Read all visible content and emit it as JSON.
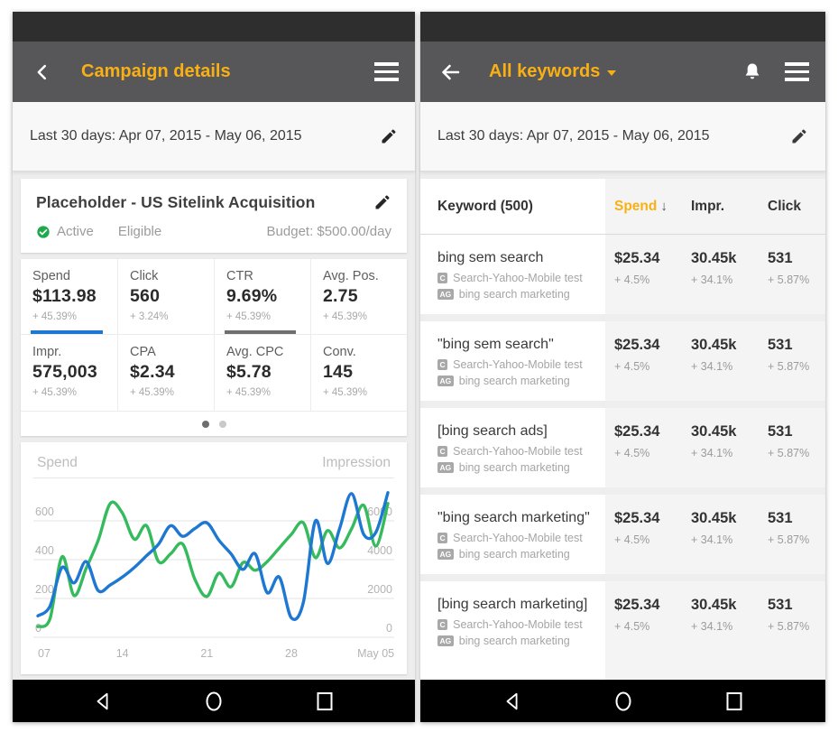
{
  "colors": {
    "accent_yellow": "#f8b015",
    "app_bar": "#57575a",
    "status_bar": "#2e2e2e",
    "green_line": "#35bb5d",
    "blue_line": "#1e78d2",
    "green_check": "#1da94c",
    "dark_underline": "#6f6f6f",
    "active_dot": "#6f6f6f",
    "inactive_dot": "#c9c9c9"
  },
  "left": {
    "app_bar": {
      "title": "Campaign details"
    },
    "date_bar": {
      "label": "Last 30 days: Apr 07, 2015 - May 06, 2015"
    },
    "campaign_card": {
      "title": "Placeholder - US Sitelink Acquisition",
      "status": "Active",
      "approval": "Eligible",
      "budget": "Budget: $500.00/day"
    },
    "stats": [
      {
        "label": "Spend",
        "value": "$113.98",
        "delta": "+ 45.39%",
        "underline": "blue"
      },
      {
        "label": "Click",
        "value": "560",
        "delta": "+ 3.24%",
        "underline": null
      },
      {
        "label": "CTR",
        "value": "9.69%",
        "delta": "+ 45.39%",
        "underline": "dark"
      },
      {
        "label": "Avg. Pos.",
        "value": "2.75",
        "delta": "+ 45.39%",
        "underline": null
      },
      {
        "label": "Impr.",
        "value": "575,003",
        "delta": "+ 45.39%",
        "underline": null
      },
      {
        "label": "CPA",
        "value": "$2.34",
        "delta": "+ 45.39%",
        "underline": null
      },
      {
        "label": "Avg. CPC",
        "value": "$5.78",
        "delta": "+ 45.39%",
        "underline": null
      },
      {
        "label": "Conv.",
        "value": "145",
        "delta": "+ 45.39%",
        "underline": null
      }
    ],
    "pager": {
      "total_dots": 2,
      "active_dot": 0
    }
  },
  "right": {
    "app_bar": {
      "title": "All keywords"
    },
    "date_bar": {
      "label": "Last 30 days: Apr 07, 2015 - May 06, 2015"
    },
    "table": {
      "header": {
        "keyword": "Keyword (500)",
        "spend": "Spend",
        "sort_icon": "↓",
        "impr": "Impr.",
        "click": "Click"
      },
      "rows": [
        {
          "keyword": "bing sem search",
          "campaign_badge": "C",
          "campaign": "Search-Yahoo-Mobile test",
          "adgroup_badge": "AG",
          "adgroup": "bing search marketing",
          "spend": "$25.34",
          "spend_delta": "+ 4.5%",
          "impr": "30.45k",
          "impr_delta": "+ 34.1%",
          "click": "531",
          "click_delta": "+ 5.87%"
        },
        {
          "keyword": "\"bing sem search\"",
          "campaign_badge": "C",
          "campaign": "Search-Yahoo-Mobile test",
          "adgroup_badge": "AG",
          "adgroup": "bing search marketing",
          "spend": "$25.34",
          "spend_delta": "+ 4.5%",
          "impr": "30.45k",
          "impr_delta": "+ 34.1%",
          "click": "531",
          "click_delta": "+ 5.87%"
        },
        {
          "keyword": "[bing search ads]",
          "campaign_badge": "C",
          "campaign": "Search-Yahoo-Mobile test",
          "adgroup_badge": "AG",
          "adgroup": "bing search marketing",
          "spend": "$25.34",
          "spend_delta": "+ 4.5%",
          "impr": "30.45k",
          "impr_delta": "+ 34.1%",
          "click": "531",
          "click_delta": "+ 5.87%"
        },
        {
          "keyword": "\"bing search marketing\"",
          "campaign_badge": "C",
          "campaign": "Search-Yahoo-Mobile test",
          "adgroup_badge": "AG",
          "adgroup": "bing search marketing",
          "spend": "$25.34",
          "spend_delta": "+ 4.5%",
          "impr": "30.45k",
          "impr_delta": "+ 34.1%",
          "click": "531",
          "click_delta": "+ 5.87%"
        },
        {
          "keyword": "[bing search marketing]",
          "campaign_badge": "C",
          "campaign": "Search-Yahoo-Mobile test",
          "adgroup_badge": "AG",
          "adgroup": "bing search marketing",
          "spend": "$25.34",
          "spend_delta": "+ 4.5%",
          "impr": "30.45k",
          "impr_delta": "+ 34.1%",
          "click": "531",
          "click_delta": "+ 5.87%"
        }
      ]
    }
  },
  "chart_data": {
    "type": "line",
    "title_left": "Spend",
    "title_right": "Impression",
    "x_ticks": [
      "07",
      "14",
      "21",
      "28",
      "May 05"
    ],
    "x_tick_days": [
      0,
      7,
      14,
      21,
      28
    ],
    "x_range_days": 30,
    "left_axis": {
      "ticks": [
        0,
        200,
        400,
        600
      ],
      "max": 700
    },
    "right_axis": {
      "ticks": [
        0,
        2000,
        4000,
        6000
      ],
      "max": 7000
    },
    "grid": true,
    "series": [
      {
        "name": "Spend",
        "axis": "left",
        "color_key": "green_line",
        "values": [
          55,
          95,
          415,
          215,
          355,
          500,
          690,
          640,
          505,
          575,
          390,
          430,
          480,
          300,
          210,
          330,
          260,
          385,
          345,
          390,
          460,
          530,
          590,
          410,
          550,
          460,
          560,
          680,
          470,
          690
        ]
      },
      {
        "name": "Impression",
        "axis": "right",
        "color_key": "blue_line",
        "values": [
          1100,
          1600,
          3600,
          2800,
          3900,
          2400,
          2700,
          3100,
          3600,
          4200,
          4800,
          5750,
          5200,
          5600,
          5900,
          5000,
          4300,
          3500,
          4300,
          2300,
          3100,
          1000,
          1800,
          6000,
          3800,
          5600,
          7400,
          5300,
          5400,
          7450
        ]
      }
    ]
  }
}
